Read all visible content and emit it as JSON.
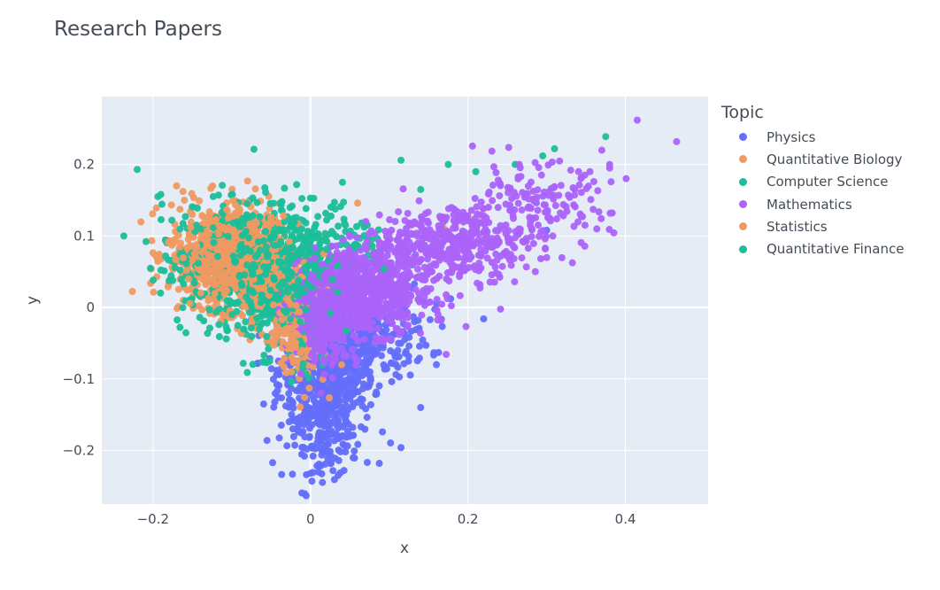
{
  "chart_data": {
    "type": "scatter",
    "title": "Research Papers",
    "xlabel": "x",
    "ylabel": "y",
    "xlim": [
      -0.265,
      0.505
    ],
    "ylim": [
      -0.275,
      0.295
    ],
    "x_ticks": [
      {
        "v": -0.2,
        "label": "−0.2"
      },
      {
        "v": 0,
        "label": "0"
      },
      {
        "v": 0.2,
        "label": "0.2"
      },
      {
        "v": 0.4,
        "label": "0.4"
      }
    ],
    "y_ticks": [
      {
        "v": -0.2,
        "label": "−0.2"
      },
      {
        "v": -0.1,
        "label": "−0.1"
      },
      {
        "v": 0,
        "label": "0"
      },
      {
        "v": 0.1,
        "label": "0.1"
      },
      {
        "v": 0.2,
        "label": "0.2"
      }
    ],
    "grid": true,
    "legend": {
      "title": "Topic",
      "placement": "right"
    },
    "series": [
      {
        "name": "Physics",
        "color": "#636efa",
        "clusters": [
          {
            "cx": 0.02,
            "cy": -0.09,
            "sx": 0.03,
            "sy": 0.05,
            "n": 700
          },
          {
            "cx": 0.06,
            "cy": -0.03,
            "sx": 0.045,
            "sy": 0.035,
            "n": 350
          },
          {
            "cx": 0.02,
            "cy": -0.19,
            "sx": 0.02,
            "sy": 0.025,
            "n": 90
          }
        ],
        "points": [
          [
            0.3,
            0.108
          ],
          [
            0.22,
            -0.016
          ],
          [
            0.14,
            -0.14
          ],
          [
            0.115,
            -0.196
          ],
          [
            0.035,
            -0.235
          ],
          [
            0.0,
            -0.232
          ],
          [
            0.16,
            -0.08
          ]
        ]
      },
      {
        "name": "Quantitative Biology",
        "color": "#ef9a62",
        "clusters": [
          {
            "cx": -0.11,
            "cy": 0.075,
            "sx": 0.035,
            "sy": 0.035,
            "n": 650
          },
          {
            "cx": -0.04,
            "cy": 0.03,
            "sx": 0.035,
            "sy": 0.025,
            "n": 320
          },
          {
            "cx": -0.01,
            "cy": -0.05,
            "sx": 0.015,
            "sy": 0.03,
            "n": 90
          }
        ],
        "points": [
          [
            -0.17,
            0.17
          ],
          [
            -0.16,
            0.15
          ],
          [
            0.06,
            0.146
          ],
          [
            0.17,
            0.11
          ],
          [
            0.2,
            0.128
          ],
          [
            0.22,
            0.138
          ],
          [
            -0.15,
            0.13
          ]
        ]
      },
      {
        "name": "Computer Science",
        "color": "#1cbe99",
        "clusters": [
          {
            "cx": -0.09,
            "cy": 0.06,
            "sx": 0.05,
            "sy": 0.045,
            "n": 380
          },
          {
            "cx": 0.0,
            "cy": 0.08,
            "sx": 0.05,
            "sy": 0.035,
            "n": 260
          },
          {
            "cx": -0.03,
            "cy": -0.02,
            "sx": 0.03,
            "sy": 0.04,
            "n": 140
          }
        ],
        "points": [
          [
            -0.22,
            0.193
          ],
          [
            -0.19,
            0.158
          ],
          [
            0.115,
            0.206
          ],
          [
            0.175,
            0.2
          ],
          [
            0.21,
            0.19
          ],
          [
            0.26,
            0.2
          ],
          [
            0.295,
            0.212
          ],
          [
            0.31,
            0.222
          ],
          [
            0.375,
            0.239
          ],
          [
            0.14,
            0.165
          ],
          [
            0.0,
            0.153
          ]
        ]
      },
      {
        "name": "Mathematics",
        "color": "#ab63fa",
        "clusters": [
          {
            "cx": 0.07,
            "cy": 0.025,
            "sx": 0.04,
            "sy": 0.03,
            "n": 700
          },
          {
            "cx": 0.18,
            "cy": 0.09,
            "sx": 0.05,
            "sy": 0.025,
            "n": 380
          },
          {
            "cx": 0.28,
            "cy": 0.14,
            "sx": 0.05,
            "sy": 0.03,
            "n": 160
          },
          {
            "cx": 0.02,
            "cy": -0.02,
            "sx": 0.02,
            "sy": 0.03,
            "n": 200
          }
        ],
        "points": [
          [
            0.415,
            0.262
          ],
          [
            0.465,
            0.232
          ],
          [
            0.37,
            0.22
          ],
          [
            0.38,
            0.195
          ],
          [
            0.38,
            0.2
          ],
          [
            0.355,
            0.19
          ]
        ]
      },
      {
        "name": "Statistics",
        "color": "#ef9a62",
        "clusters": [
          {
            "cx": -0.09,
            "cy": 0.065,
            "sx": 0.03,
            "sy": 0.03,
            "n": 350
          },
          {
            "cx": -0.03,
            "cy": -0.04,
            "sx": 0.015,
            "sy": 0.025,
            "n": 60
          }
        ],
        "points": []
      },
      {
        "name": "Quantitative Finance",
        "color": "#1cbe99",
        "clusters": [
          {
            "cx": -0.05,
            "cy": 0.05,
            "sx": 0.04,
            "sy": 0.04,
            "n": 150
          }
        ],
        "points": []
      }
    ]
  }
}
